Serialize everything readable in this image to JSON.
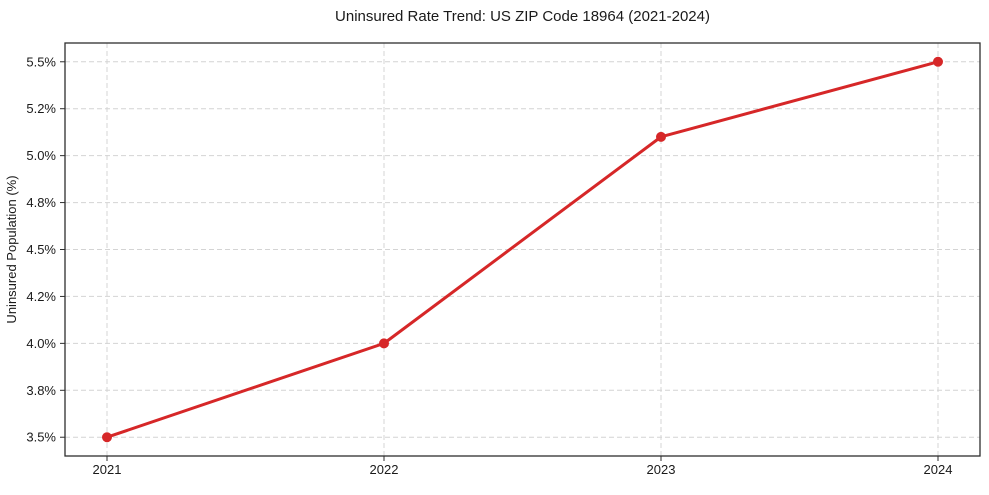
{
  "chart_data": {
    "type": "line",
    "title": "Uninsured Rate Trend: US ZIP Code 18964 (2021-2024)",
    "xlabel": "",
    "ylabel": "Uninsured Population (%)",
    "x": [
      "2021",
      "2022",
      "2023",
      "2024"
    ],
    "values": [
      3.5,
      4.0,
      5.1,
      5.5
    ],
    "ylim": [
      3.4,
      5.6
    ],
    "yticks": [
      {
        "value": 3.5,
        "label": "3.5%"
      },
      {
        "value": 3.75,
        "label": "3.8%"
      },
      {
        "value": 4.0,
        "label": "4.0%"
      },
      {
        "value": 4.25,
        "label": "4.2%"
      },
      {
        "value": 4.5,
        "label": "4.5%"
      },
      {
        "value": 4.75,
        "label": "4.8%"
      },
      {
        "value": 5.0,
        "label": "5.0%"
      },
      {
        "value": 5.25,
        "label": "5.2%"
      },
      {
        "value": 5.5,
        "label": "5.5%"
      }
    ],
    "grid": true,
    "legend": "none",
    "style": {
      "line_color": "#d62728",
      "marker_color": "#d62728",
      "grid_color": "#d4d4d4",
      "spine_color": "#2e2e2e",
      "text_color": "#1a1a1a",
      "background_color": "#ffffff"
    }
  }
}
